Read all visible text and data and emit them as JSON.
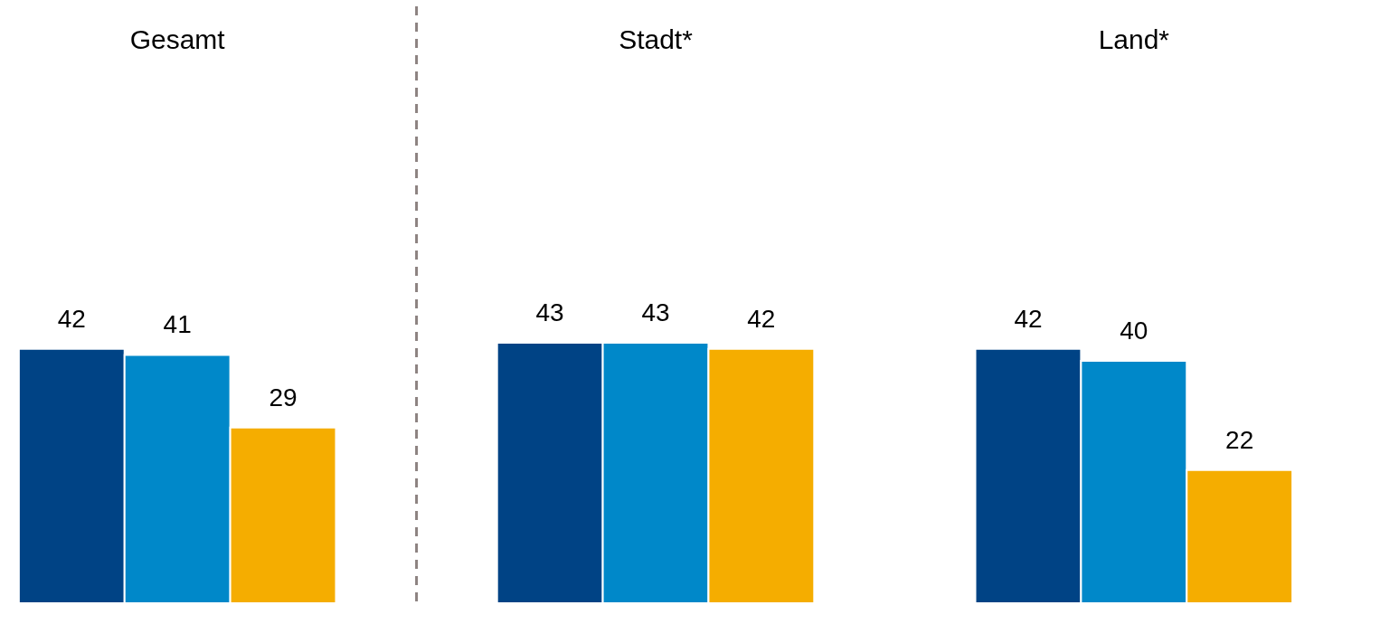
{
  "chart_data": {
    "type": "bar",
    "categories": [
      "Gesamt",
      "Stadt*",
      "Land*"
    ],
    "series": [
      {
        "color": "#004385",
        "values": [
          42,
          43,
          42
        ]
      },
      {
        "color": "#0088c9",
        "values": [
          41,
          43,
          40
        ]
      },
      {
        "color": "#f5ad00",
        "values": [
          29,
          42,
          22
        ]
      }
    ],
    "tick_labels": "x",
    "data_labels": true
  }
}
